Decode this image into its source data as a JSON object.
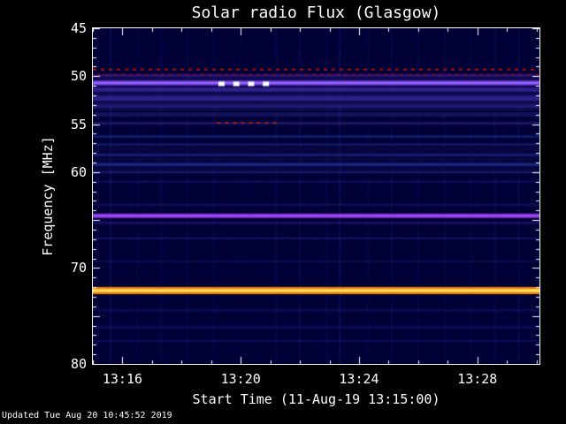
{
  "title": "Solar radio Flux (Glasgow)",
  "updated_text": "Updated Tue Aug 20 10:45:52 2019",
  "chart_data": {
    "type": "heatmap",
    "title": "Solar radio Flux (Glasgow)",
    "xlabel": "Start Time (11-Aug-19 13:15:00)",
    "ylabel": "Frequency [MHz]",
    "x_range_minutes": [
      0,
      15.1
    ],
    "y_range_mhz": [
      45,
      80
    ],
    "x_ticks": [
      {
        "label": "13:16",
        "minute": 1
      },
      {
        "label": "13:20",
        "minute": 5
      },
      {
        "label": "13:24",
        "minute": 9
      },
      {
        "label": "13:28",
        "minute": 13
      }
    ],
    "y_ticks": [
      {
        "label": "45",
        "freq": 45
      },
      {
        "label": "50",
        "freq": 50
      },
      {
        "label": "55",
        "freq": 55
      },
      {
        "label": "60",
        "freq": 60
      },
      {
        "label": "70",
        "freq": 70
      },
      {
        "label": "80",
        "freq": 80
      }
    ],
    "ticks": {
      "x_major_minutes": [
        1,
        5,
        9,
        13
      ],
      "x_minor_step_minutes": 1,
      "y_major_mhz": [
        45,
        50,
        55,
        60,
        65,
        70,
        75,
        80
      ],
      "y_minor_step_mhz": 1,
      "major_len": 8,
      "minor_len": 4,
      "color": "#ffffff"
    },
    "plot_bg": "#000035",
    "axis_color": "#ffffff",
    "haze_bands": [
      {
        "freq": 51.8,
        "width": 3.6,
        "color": "#1c1464",
        "alpha": 0.55
      },
      {
        "freq": 58.6,
        "width": 3.2,
        "color": "#101050",
        "alpha": 0.4
      }
    ],
    "bands": [
      {
        "freq": 49.9,
        "width": 0.25,
        "color": "#5522cc",
        "alpha": 0.5
      },
      {
        "freq": 50.7,
        "width": 0.5,
        "color": "#7744ee",
        "alpha": 0.85,
        "core": "#9966ff"
      },
      {
        "freq": 51.4,
        "width": 0.4,
        "color": "#5533cc",
        "alpha": 0.5
      },
      {
        "freq": 52.3,
        "width": 0.5,
        "color": "#4a2fb8",
        "alpha": 0.55
      },
      {
        "freq": 53.1,
        "width": 0.4,
        "color": "#3a2f9f",
        "alpha": 0.4
      },
      {
        "freq": 54.0,
        "width": 0.5,
        "color": "#33309a",
        "alpha": 0.35
      },
      {
        "freq": 54.9,
        "width": 0.3,
        "color": "#443399",
        "alpha": 0.4
      },
      {
        "freq": 56.3,
        "width": 0.25,
        "color": "#2a3fb0",
        "alpha": 0.45
      },
      {
        "freq": 57.1,
        "width": 0.2,
        "color": "#2a3fb0",
        "alpha": 0.35
      },
      {
        "freq": 58.2,
        "width": 0.25,
        "color": "#2a3fb0",
        "alpha": 0.45
      },
      {
        "freq": 59.2,
        "width": 0.3,
        "color": "#3344bb",
        "alpha": 0.5
      },
      {
        "freq": 60.0,
        "width": 0.2,
        "color": "#2a3fb0",
        "alpha": 0.35
      },
      {
        "freq": 61.0,
        "width": 0.2,
        "color": "#22359f",
        "alpha": 0.3
      },
      {
        "freq": 63.4,
        "width": 0.25,
        "color": "#33309a",
        "alpha": 0.3
      },
      {
        "freq": 64.55,
        "width": 0.5,
        "color": "#8833dd",
        "alpha": 0.8,
        "core": "#aa55ff"
      },
      {
        "freq": 65.3,
        "width": 0.25,
        "color": "#5522aa",
        "alpha": 0.35
      },
      {
        "freq": 66.9,
        "width": 0.2,
        "color": "#2a3fb0",
        "alpha": 0.35
      },
      {
        "freq": 69.3,
        "width": 0.2,
        "color": "#22359f",
        "alpha": 0.25
      },
      {
        "freq": 72.35,
        "width": 0.75,
        "color": "#ff8800",
        "alpha": 0.95,
        "core": "#ffe066"
      },
      {
        "freq": 74.4,
        "width": 0.25,
        "color": "#1a2f9f",
        "alpha": 0.3
      },
      {
        "freq": 76.2,
        "width": 0.25,
        "color": "#1a2f9f",
        "alpha": 0.3
      },
      {
        "freq": 77.6,
        "width": 0.2,
        "color": "#1a2f9f",
        "alpha": 0.25
      }
    ],
    "red_dashed_lines": [
      {
        "freq": 49.3,
        "minute_start": 0,
        "minute_end": 15.1,
        "color": "#bb1500",
        "alpha": 0.95,
        "dash_offset": 0
      },
      {
        "freq": 49.85,
        "minute_start": 0,
        "minute_end": 15.1,
        "color": "#991200",
        "alpha": 0.65,
        "dash_offset": 4
      },
      {
        "freq": 54.85,
        "minute_start": 4.2,
        "minute_end": 6.3,
        "color": "#bb2200",
        "alpha": 0.85,
        "dash_offset": 0
      }
    ],
    "white_dots": {
      "freq": 50.8,
      "minutes": [
        4.35,
        4.85,
        5.35,
        5.85
      ],
      "color": "#ffffff",
      "dot_w": 7,
      "dot_h": 5
    },
    "vertical_stripes": [
      {
        "m": 0.6,
        "w": 3,
        "a": 0.1
      },
      {
        "m": 1.5,
        "w": 2,
        "a": 0.06
      },
      {
        "m": 2.3,
        "w": 4,
        "a": 0.05
      },
      {
        "m": 3.2,
        "w": 2,
        "a": 0.07
      },
      {
        "m": 4.1,
        "w": 3,
        "a": 0.05
      },
      {
        "m": 5.0,
        "w": 2,
        "a": 0.05
      },
      {
        "m": 6.2,
        "w": 3,
        "a": 0.06
      },
      {
        "m": 7.0,
        "w": 2,
        "a": 0.08
      },
      {
        "m": 7.9,
        "w": 4,
        "a": 0.05
      },
      {
        "m": 8.35,
        "w": 2,
        "a": 0.14
      },
      {
        "m": 9.3,
        "w": 3,
        "a": 0.05
      },
      {
        "m": 10.1,
        "w": 2,
        "a": 0.07
      },
      {
        "m": 11.0,
        "w": 3,
        "a": 0.05
      },
      {
        "m": 11.9,
        "w": 2,
        "a": 0.06
      },
      {
        "m": 12.8,
        "w": 3,
        "a": 0.05
      },
      {
        "m": 13.6,
        "w": 2,
        "a": 0.08
      },
      {
        "m": 14.4,
        "w": 3,
        "a": 0.06
      }
    ],
    "stripe_color_rgb": "68,85,255"
  }
}
